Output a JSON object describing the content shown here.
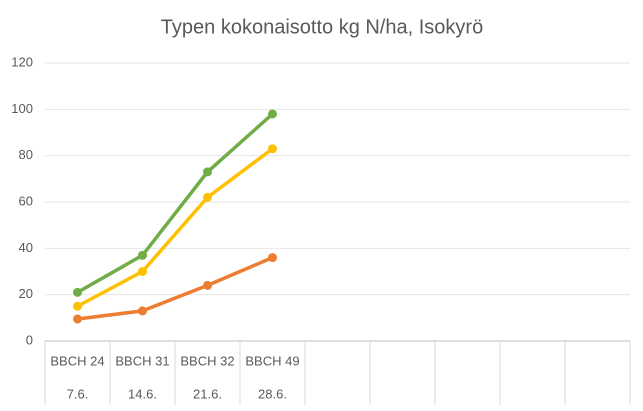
{
  "chart_data": {
    "type": "line",
    "title": "Typen kokonaisotto kg N/ha, Isokyrö",
    "categories": [
      "BBCH 24",
      "BBCH 31",
      "BBCH 32",
      "BBCH 49",
      null,
      null,
      null,
      null,
      null
    ],
    "categories2": [
      "7.6.",
      "14.6.",
      "21.6.",
      "28.6.",
      null,
      null,
      null,
      null,
      null
    ],
    "series": [
      {
        "color": "#70ad47",
        "values": [
          21,
          37,
          73,
          98,
          null,
          null,
          null,
          null,
          null
        ]
      },
      {
        "color": "#ffc000",
        "values": [
          15,
          30,
          62,
          83,
          null,
          null,
          null,
          null,
          null
        ]
      },
      {
        "color": "#ed7d31",
        "values": [
          9.5,
          13,
          24,
          36,
          null,
          null,
          null,
          null,
          null
        ]
      }
    ],
    "ylim": [
      0,
      120
    ],
    "yticks": [
      0,
      20,
      40,
      60,
      80,
      100,
      120
    ],
    "grid": true
  }
}
